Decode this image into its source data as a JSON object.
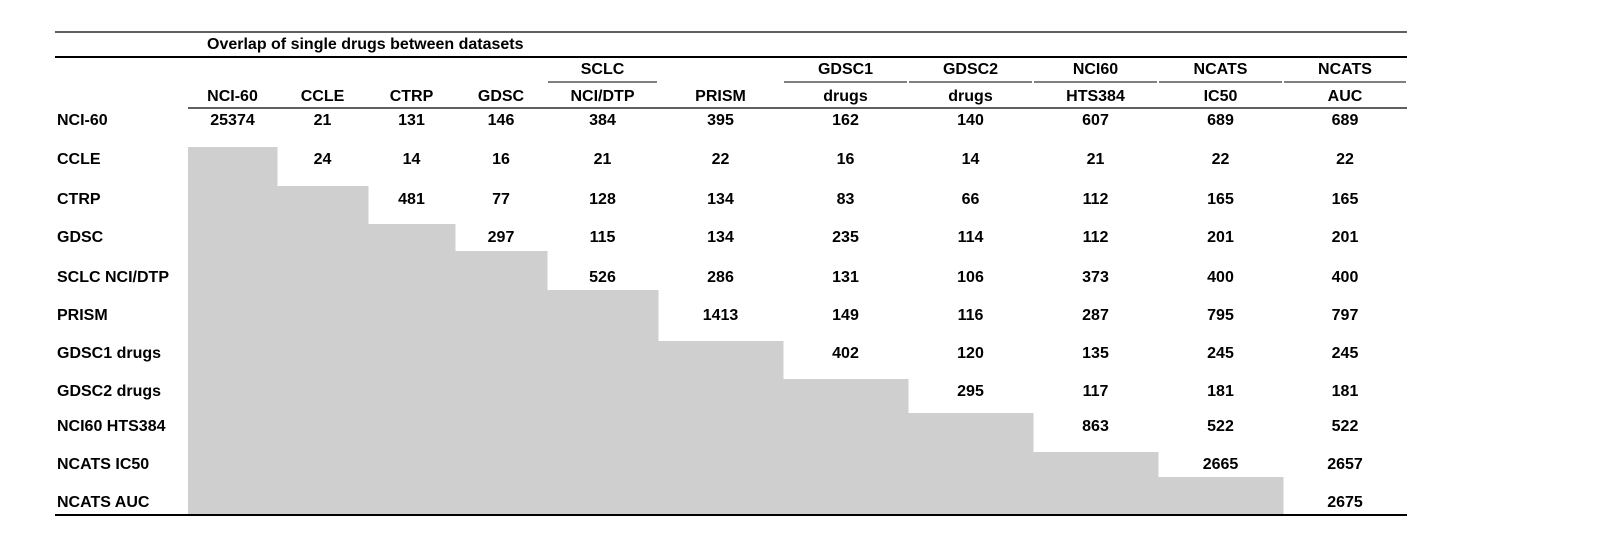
{
  "table": {
    "title": "Overlap of single drugs between datasets",
    "columns": [
      {
        "lines": [
          "NCI-60"
        ]
      },
      {
        "lines": [
          "CCLE"
        ]
      },
      {
        "lines": [
          "CTRP"
        ]
      },
      {
        "lines": [
          "GDSC"
        ]
      },
      {
        "lines": [
          "SCLC",
          "NCI/DTP"
        ]
      },
      {
        "lines": [
          "PRISM"
        ]
      },
      {
        "lines": [
          "GDSC1",
          "drugs"
        ]
      },
      {
        "lines": [
          "GDSC2",
          "drugs"
        ]
      },
      {
        "lines": [
          "NCI60",
          "HTS384"
        ]
      },
      {
        "lines": [
          "NCATS",
          "IC50"
        ]
      },
      {
        "lines": [
          "NCATS",
          "AUC"
        ]
      }
    ],
    "rows": [
      {
        "label": "NCI-60",
        "values": [
          25374,
          21,
          131,
          146,
          384,
          395,
          162,
          140,
          607,
          689,
          689
        ]
      },
      {
        "label": "CCLE",
        "values": [
          24,
          14,
          16,
          21,
          22,
          16,
          14,
          21,
          22,
          22
        ]
      },
      {
        "label": "CTRP",
        "values": [
          481,
          77,
          128,
          134,
          83,
          66,
          112,
          165,
          165
        ]
      },
      {
        "label": "GDSC",
        "values": [
          297,
          115,
          134,
          235,
          114,
          112,
          201,
          201
        ]
      },
      {
        "label": "SCLC NCI/DTP",
        "values": [
          526,
          286,
          131,
          106,
          373,
          400,
          400
        ]
      },
      {
        "label": "PRISM",
        "values": [
          1413,
          149,
          116,
          287,
          795,
          797
        ]
      },
      {
        "label": "GDSC1 drugs",
        "values": [
          402,
          120,
          135,
          245,
          245
        ]
      },
      {
        "label": "GDSC2 drugs",
        "values": [
          295,
          117,
          181,
          181
        ]
      },
      {
        "label": "NCI60 HTS384",
        "values": [
          863,
          522,
          522
        ]
      },
      {
        "label": "NCATS IC50",
        "values": [
          2665,
          2657
        ]
      },
      {
        "label": "NCATS AUC",
        "values": [
          2675
        ]
      }
    ]
  }
}
